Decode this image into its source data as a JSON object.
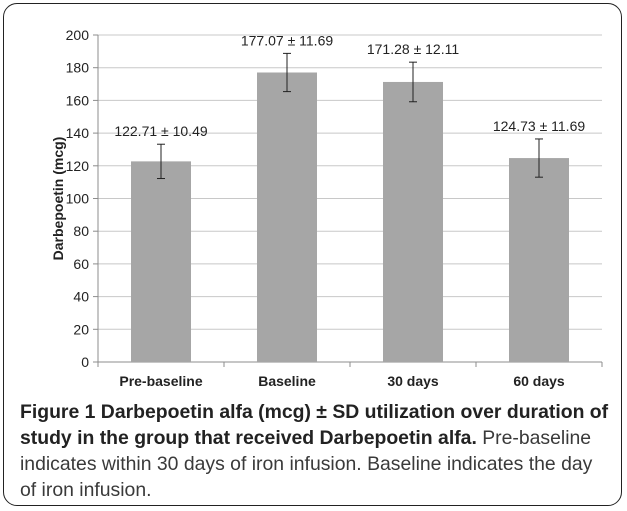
{
  "chart_data": {
    "type": "bar",
    "categories": [
      "Pre-baseline",
      "Baseline",
      "30 days",
      "60 days"
    ],
    "values": [
      122.71,
      177.07,
      171.28,
      124.73
    ],
    "errors": [
      10.49,
      11.69,
      12.11,
      11.69
    ],
    "data_labels": [
      "122.71 ± 10.49",
      "177.07 ± 11.69",
      "171.28 ± 12.11",
      "124.73 ± 11.69"
    ],
    "ylabel": "Darbepoetin (mcg)",
    "xlabel": "",
    "title": "",
    "ylim": [
      0,
      200
    ],
    "yticks": [
      0,
      20,
      40,
      60,
      80,
      100,
      120,
      140,
      160,
      180,
      200
    ],
    "grid": true,
    "bar_color": "#a6a6a6"
  },
  "caption": {
    "title": "Figure 1 Darbepoetin alfa (mcg) ± SD utilization over duration of study in the group that received Darbepoetin alfa.",
    "text": " Pre-baseline indicates within 30 days of iron infusion. Baseline indicates the day of iron infusion."
  }
}
